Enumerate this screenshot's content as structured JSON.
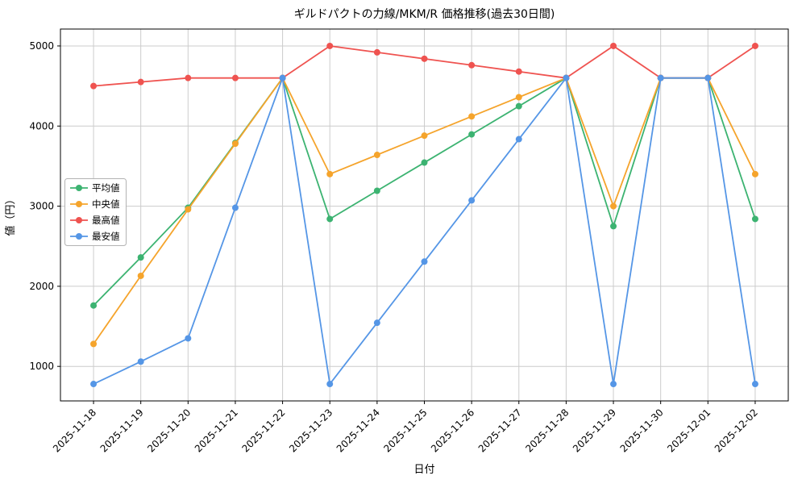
{
  "chart_data": {
    "type": "line",
    "title": "ギルドパクトの力線/MKM/R 価格推移(過去30日間)",
    "xlabel": "日付",
    "ylabel": "値（円）",
    "categories": [
      "2025-11-18",
      "2025-11-19",
      "2025-11-20",
      "2025-11-21",
      "2025-11-22",
      "2025-11-23",
      "2025-11-24",
      "2025-11-25",
      "2025-11-26",
      "2025-11-27",
      "2025-11-28",
      "2025-11-29",
      "2025-11-30",
      "2025-12-01",
      "2025-12-02"
    ],
    "series": [
      {
        "name": "平均値",
        "key": "average",
        "color": "#3cb371",
        "values": [
          1760,
          2360,
          2980,
          3790,
          4600,
          2840,
          3192,
          3544,
          3896,
          4248,
          4600,
          2750,
          4600,
          4600,
          2840
        ]
      },
      {
        "name": "中央値",
        "key": "median",
        "color": "#f5a42c",
        "values": [
          1280,
          2130,
          2960,
          3780,
          4600,
          3400,
          3640,
          3880,
          4120,
          4360,
          4600,
          3000,
          4600,
          4600,
          3400
        ]
      },
      {
        "name": "最高値",
        "key": "max",
        "color": "#ef5350",
        "values": [
          4500,
          4550,
          4600,
          4600,
          4600,
          5000,
          4920,
          4840,
          4760,
          4680,
          4600,
          5000,
          4600,
          4600,
          5000
        ]
      },
      {
        "name": "最安値",
        "key": "min",
        "color": "#5596e6",
        "values": [
          780,
          1060,
          1350,
          2980,
          4600,
          780,
          1544,
          2308,
          3072,
          3836,
          4600,
          780,
          4600,
          4600,
          780
        ]
      }
    ],
    "yticks": [
      1000,
      2000,
      3000,
      4000,
      5000
    ],
    "ylim": [
      569,
      5211
    ],
    "grid": true,
    "grid_color": "#cccccc",
    "axis_color": "#000000",
    "background": "#ffffff",
    "legend_position": "center-left",
    "x_tick_rotation": 45
  }
}
